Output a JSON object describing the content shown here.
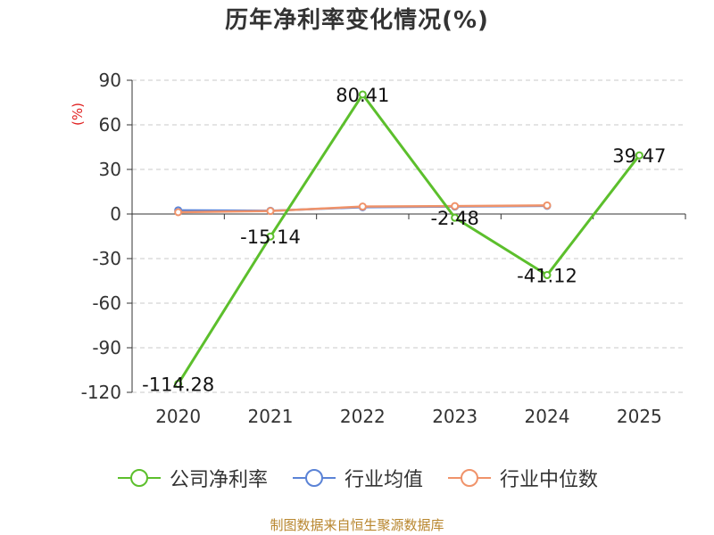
{
  "chart_data": {
    "type": "line",
    "title": "历年净利率变化情况(%)",
    "ylabel": "(%)",
    "categories": [
      "2020",
      "2021",
      "2022",
      "2023",
      "2024",
      "2025"
    ],
    "ylim": [
      -120,
      90
    ],
    "yticks": [
      90,
      60,
      30,
      0,
      -30,
      -60,
      -90,
      -120
    ],
    "grid": true,
    "legend_position": "bottom",
    "series": [
      {
        "name": "公司净利率",
        "color": "#5cbf2c",
        "values": [
          -114.28,
          -15.14,
          80.41,
          -2.48,
          -41.12,
          39.47
        ],
        "labels": [
          "-114.28",
          "-15.14",
          "80.41",
          "-2.48",
          "-41.12",
          "39.47"
        ]
      },
      {
        "name": "行业均值",
        "color": "#5b83d6",
        "values": [
          2.5,
          2.2,
          4.6,
          5.0,
          5.5,
          null
        ]
      },
      {
        "name": "行业中位数",
        "color": "#f0936a",
        "values": [
          1.2,
          2.0,
          5.0,
          5.3,
          5.8,
          null
        ]
      }
    ]
  },
  "source": "制图数据来自恒生聚源数据库"
}
